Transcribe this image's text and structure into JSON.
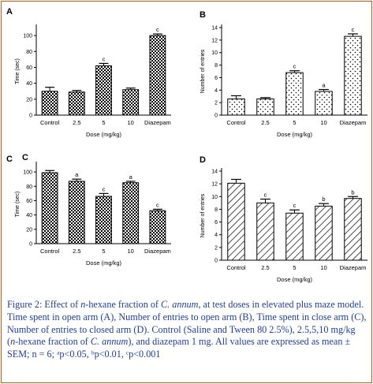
{
  "chart_data": [
    {
      "panel_label": "A",
      "type": "bar",
      "pattern": "checkered",
      "categories": [
        "Control",
        "2.5",
        "5",
        "10",
        "Diazepam"
      ],
      "values": [
        30,
        29,
        62,
        32,
        100
      ],
      "errors": [
        5,
        2,
        3,
        2,
        2
      ],
      "significance": [
        "",
        "",
        "c",
        "",
        "c"
      ],
      "ylabel": "Time (sec)",
      "xlabel": "Dose (mg/kg)",
      "ylim": [
        0,
        110
      ],
      "yticks": [
        0,
        20,
        40,
        60,
        80,
        100
      ]
    },
    {
      "panel_label": "B",
      "type": "bar",
      "pattern": "dotted",
      "categories": [
        "Control",
        "2.5",
        "5",
        "10",
        "Diazepam"
      ],
      "values": [
        2.6,
        2.6,
        6.8,
        3.8,
        12.6
      ],
      "errors": [
        0.5,
        0.2,
        0.3,
        0.3,
        0.4
      ],
      "significance": [
        "",
        "",
        "c",
        "a",
        "c"
      ],
      "ylabel": "Number of entries",
      "xlabel": "Dose (mg/kg)",
      "ylim": [
        0,
        14
      ],
      "yticks": [
        0,
        2,
        4,
        6,
        8,
        10,
        12,
        14
      ]
    },
    {
      "panel_label": "C",
      "panel_label_inner": "C",
      "type": "bar",
      "pattern": "checkered",
      "categories": [
        "Control",
        "2.5",
        "5",
        "10",
        "Diazepam"
      ],
      "values": [
        99,
        87,
        66,
        85,
        46
      ],
      "errors": [
        3,
        3,
        4,
        2,
        2
      ],
      "significance": [
        "",
        "a",
        "c",
        "a",
        "c"
      ],
      "ylabel": "Time (sec)",
      "xlabel": "Dose (mg/kg)",
      "ylim": [
        0,
        110
      ],
      "yticks": [
        0,
        20,
        40,
        60,
        80,
        100
      ]
    },
    {
      "panel_label": "D",
      "type": "bar",
      "pattern": "hatched",
      "categories": [
        "Control",
        "2.5",
        "5",
        "10",
        "Diazepam"
      ],
      "values": [
        12.1,
        9.0,
        7.4,
        8.5,
        9.7
      ],
      "errors": [
        0.6,
        0.6,
        0.5,
        0.4,
        0.3
      ],
      "significance": [
        "",
        "c",
        "c",
        "b",
        "b"
      ],
      "ylabel": "Number of entries",
      "xlabel": "Dose (mg/kg)",
      "ylim": [
        0,
        14
      ],
      "yticks": [
        0,
        2,
        4,
        6,
        8,
        10,
        12,
        14
      ]
    }
  ],
  "caption": {
    "p1": "Figure 2: Effect of ",
    "p2": "n",
    "p3": "-hexane fraction of ",
    "p4": "C. annum,",
    "p5": " at test doses in elevated plus maze model. Time spent in open arm (A), Number of entries to open arm (B), Time spent in close arm (C), Number of entries to closed arm (D). Control (Saline and Tween 80 2.5%), 2.5,5,10 mg/kg (",
    "p6": "n",
    "p7": "-hexane fraction of ",
    "p8": "C. annum",
    "p9": "), and diazepam 1 mg. All values are expressed as mean ± SEM; n = 6; ᵃp<0.05, ᵇp<0.01, ᶜp<0.001"
  },
  "colors": {
    "border": "#c55a11",
    "caption_text": "#1f3f9e",
    "ink": "#000000"
  }
}
